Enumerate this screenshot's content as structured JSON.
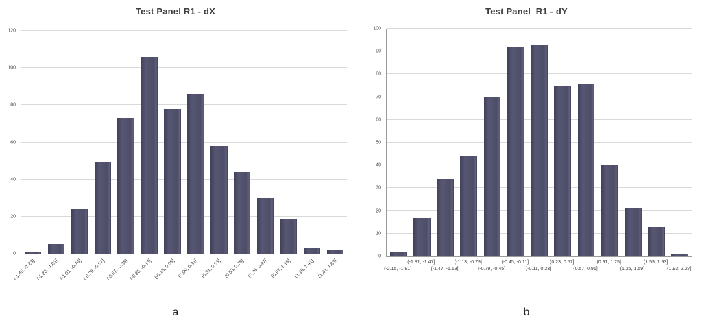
{
  "figure": {
    "background": "#ffffff",
    "captions": [
      "a",
      "b"
    ]
  },
  "colors": {
    "bar_main": "#4d4d68",
    "bar_dark": "#40405a",
    "bar_light": "#575773",
    "gridline": "#d9d9d9",
    "axis_line": "#9a9a9a",
    "title_text": "#3f3f3f",
    "tick_text": "#3d3d3d"
  },
  "chart_data": [
    {
      "type": "bar",
      "title": "Test Panel R1 - dX",
      "caption": "a",
      "categories": [
        "(-1.45, -1.23]",
        "(-1.23, -1.01]",
        "(-1.01, -0.79]",
        "(-0.79, -0.57]",
        "(-0.57, -0.35]",
        "(-0.35, -0.13]",
        "(-0.13, 0.09]",
        "(0.09, 0.31]",
        "(0.31, 0.53]",
        "(0.53, 0.75]",
        "(0.75, 0.97]",
        "(0.97, 1.19]",
        "(1.19, 1.41]",
        "(1.41, 1.63]"
      ],
      "values": [
        1,
        5,
        24,
        49,
        73,
        106,
        78,
        86,
        58,
        44,
        30,
        19,
        3,
        2
      ],
      "xlabel": "",
      "ylabel": "",
      "ylim": [
        0,
        120
      ],
      "ytick_step": 20,
      "grid": true,
      "legend": false,
      "xlabel_layout": "rotated-45"
    },
    {
      "type": "bar",
      "title": "Test Panel  R1 - dY",
      "caption": "b",
      "categories": [
        "(-2.15, -1.81]",
        "(-1.81, -1.47]",
        "(-1.47, -1.13]",
        "(-1.13, -0.79]",
        "(-0.79, -0.45]",
        "(-0.45, -0.11]",
        "(-0.11, 0.23]",
        "(0.23, 0.57]",
        "(0.57, 0.91]",
        "(0.91, 1.25]",
        "(1.25, 1.59]",
        "(1.59, 1.93]",
        "(1.93, 2.27]"
      ],
      "values": [
        2,
        17,
        34,
        44,
        70,
        92,
        93,
        75,
        76,
        40,
        21,
        13,
        1
      ],
      "xlabel": "",
      "ylabel": "",
      "ylim": [
        0,
        100
      ],
      "ytick_step": 10,
      "grid": true,
      "legend": false,
      "xlabel_layout": "staggered-two-rows"
    }
  ]
}
